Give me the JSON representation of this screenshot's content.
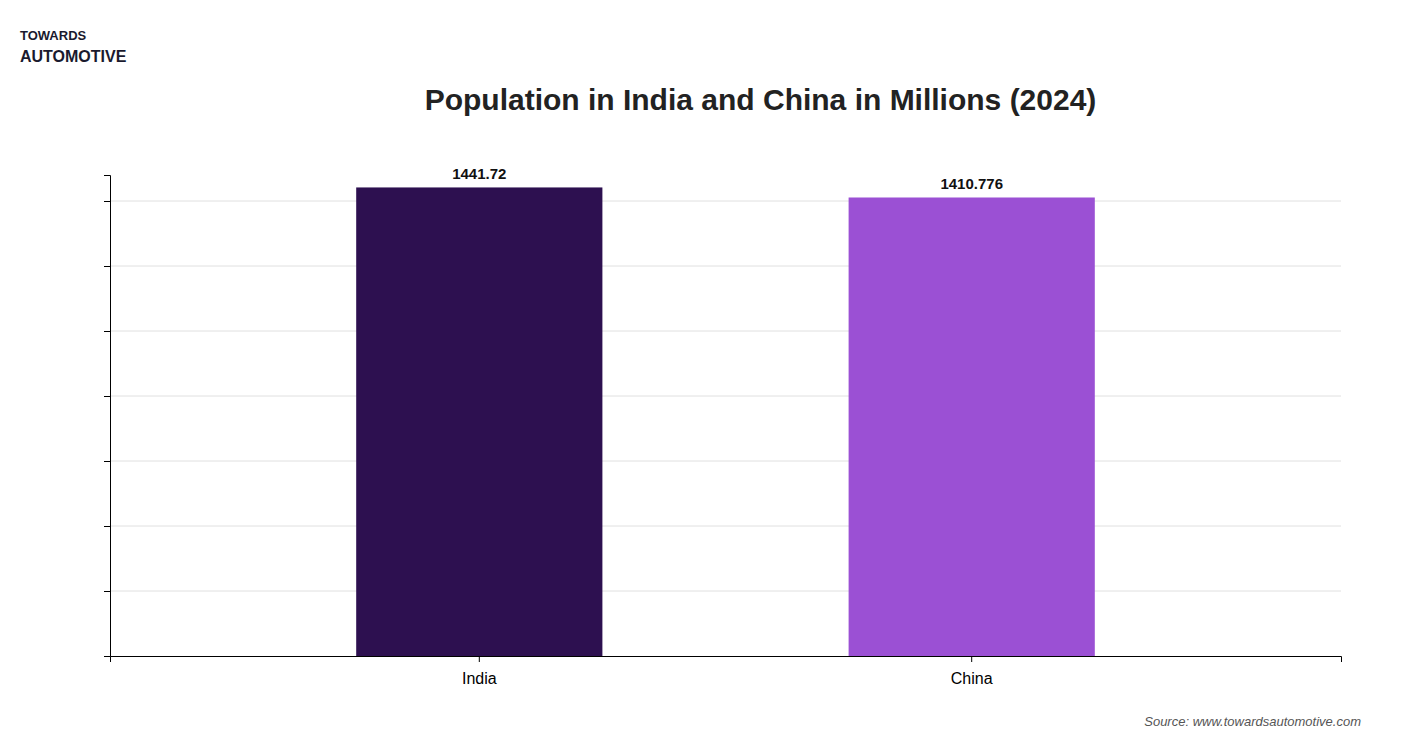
{
  "chart_data": {
    "type": "bar",
    "title": "Population in India and China in Millions (2024)",
    "categories": [
      "India",
      "China"
    ],
    "values": [
      1441.72,
      1410.776
    ],
    "colors": [
      "#2D1050",
      "#9B50D4"
    ],
    "ylim": [
      0,
      1480
    ],
    "yticks": [
      200,
      400,
      600,
      800,
      1000,
      1200,
      1400
    ],
    "grid": true,
    "tick_labels": "x",
    "data_labels": true,
    "annotations": [
      "TOWARDS",
      "AUTOMOTIVE",
      "Source: www.towardsautomotive.com"
    ]
  }
}
